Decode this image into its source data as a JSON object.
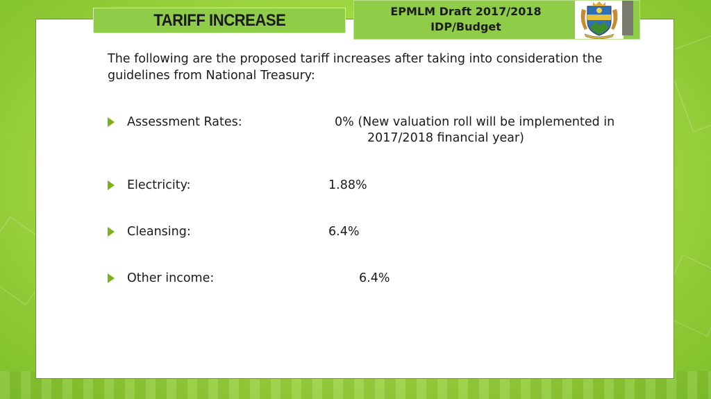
{
  "slide": {
    "title": "TARIFF INCREASE",
    "header_line1": "EPMLM Draft 2017/2018",
    "header_line2": "IDP/Budget",
    "intro": "The following are the proposed tariff increases after taking into consideration the guidelines from National Treasury:",
    "items": [
      {
        "label": "Assessment Rates:",
        "value": "0% (New valuation roll will be implemented in",
        "value_cont": "2017/2018 financial year)"
      },
      {
        "label": "Electricity:",
        "value": "1.88%"
      },
      {
        "label": "Cleansing:",
        "value": "6.4%"
      },
      {
        "label": "Other income:",
        "value": "6.4%"
      }
    ]
  },
  "colors": {
    "accent_green": "#8fcc47",
    "bullet_green": "#7ab317"
  },
  "icons": {
    "logo": "municipal-coat-of-arms",
    "bullet": "triangle-right"
  }
}
